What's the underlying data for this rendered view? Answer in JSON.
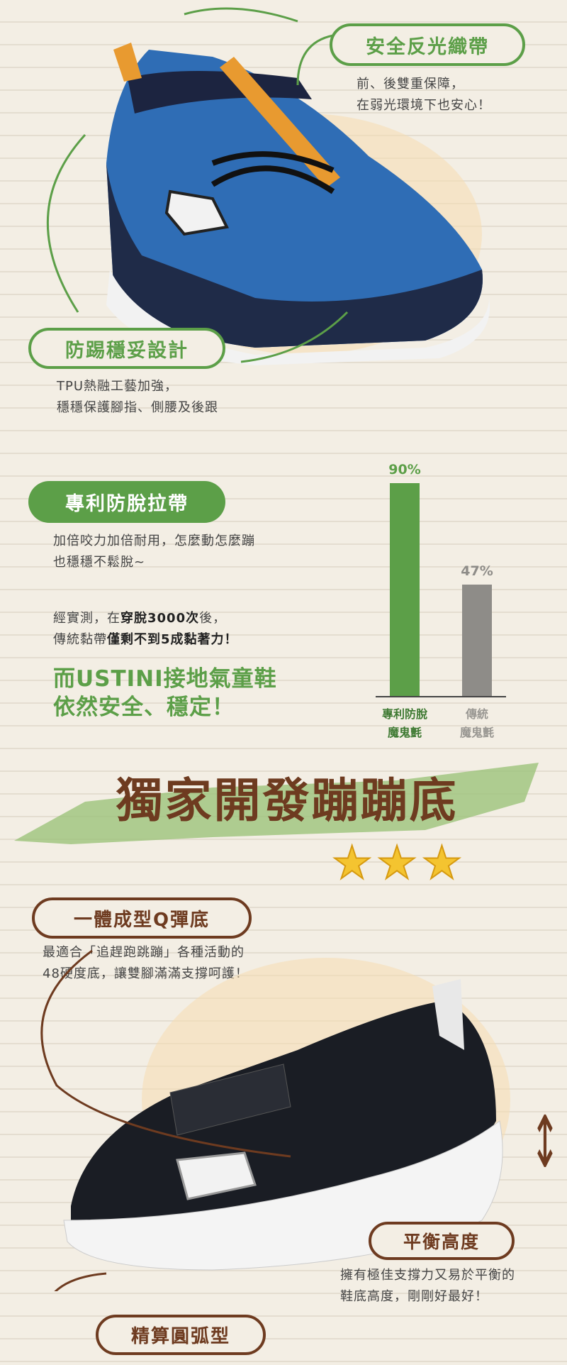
{
  "section1": {
    "reflective": {
      "title": "安全反光織帶",
      "lines": [
        "前、後雙重保障，",
        "在弱光環境下也安心！"
      ]
    },
    "anti_kick": {
      "title": "防踢穩妥設計",
      "lines": [
        "TPU熱融工藝加強，",
        "穩穩保護腳指、側腰及後跟"
      ]
    }
  },
  "section2": {
    "title": "專利防脫拉帶",
    "lines": [
      "加倍咬力加倍耐用，怎麼動怎麼蹦",
      "也穩穩不鬆脫~"
    ],
    "test_line1_pre": "經實測，在",
    "test_line1_bold": "穿脫3000次",
    "test_line1_post": "後，",
    "test_line2_pre": "傳統黏帶",
    "test_line2_bold": "僅剩不到5成黏著力！",
    "highlight": [
      "而USTINI接地氣童鞋",
      "依然安全、穩定！"
    ]
  },
  "chart_data": {
    "type": "bar",
    "categories": [
      "專利防脫魔鬼氈",
      "傳統魔鬼氈"
    ],
    "category_lines": [
      [
        "專利防脫",
        "魔鬼氈"
      ],
      [
        "傳統",
        "魔鬼氈"
      ]
    ],
    "values": [
      90,
      47
    ],
    "value_labels": [
      "90%",
      "47%"
    ],
    "colors": [
      "#5c9f48",
      "#8e8c88"
    ],
    "ylim": [
      0,
      100
    ]
  },
  "section3": {
    "headline": "獨家開發蹦蹦底",
    "stars": 3,
    "one_piece": {
      "title": "一體成型Q彈底",
      "lines": [
        "最適合「追趕跑跳蹦」各種活動的",
        "48硬度底，讓雙腳滿滿支撐呵護！"
      ]
    },
    "balance": {
      "title": "平衡高度",
      "lines": [
        "擁有極佳支撐力又易於平衡的",
        "鞋底高度，剛剛好最好！"
      ]
    },
    "arc": {
      "title": "精算圓弧型"
    }
  },
  "colors": {
    "green": "#5c9f48",
    "brown": "#6e3b20",
    "background": "#f3eee4",
    "star": "#f4c430"
  }
}
